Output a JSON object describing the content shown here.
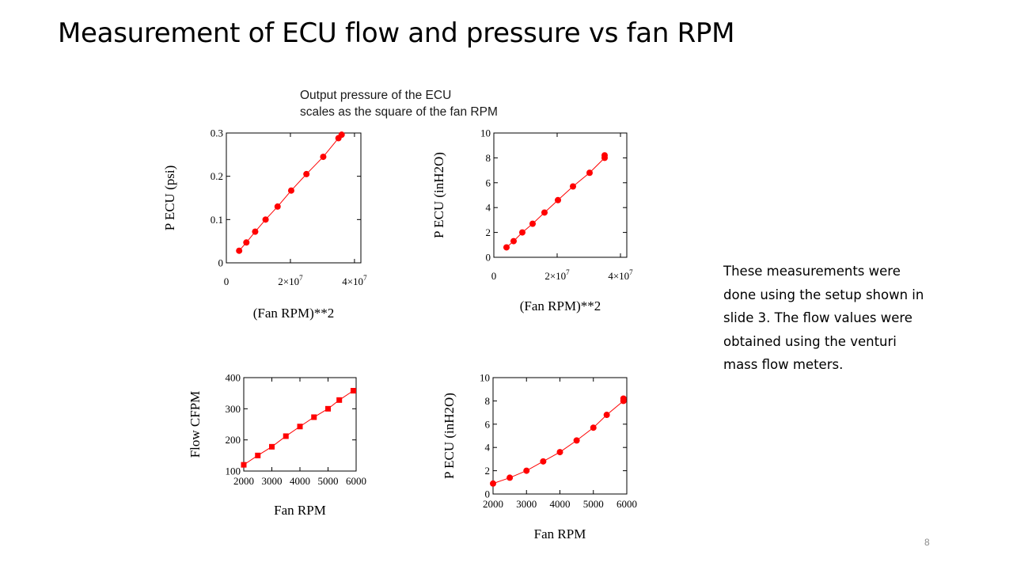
{
  "slide": {
    "title": "Measurement of ECU flow and pressure vs fan RPM",
    "annotation": [
      "Output pressure of the ECU",
      "scales as the square of the fan RPM"
    ],
    "note": [
      "These measurements were",
      "done using the setup shown in",
      "slide 3.  The flow values were",
      "obtained using the venturi",
      "mass flow meters."
    ],
    "page_number": "8"
  },
  "colors": {
    "series": "#ff0000",
    "axis": "#000000",
    "grid": "#000000"
  },
  "chart_data": [
    {
      "type": "line",
      "xlabel": "(Fan RPM)**2",
      "ylabel": "P ECU (psi)",
      "xlim": [
        0,
        42000000.0
      ],
      "ylim": [
        0,
        0.3
      ],
      "xticks": [
        {
          "v": 0,
          "b": "0",
          "e": ""
        },
        {
          "v": 20000000.0,
          "b": "2×10",
          "e": "7"
        },
        {
          "v": 40000000.0,
          "b": "4×10",
          "e": "7"
        }
      ],
      "yticks": [
        {
          "v": 0,
          "t": "0"
        },
        {
          "v": 0.1,
          "t": "0.1"
        },
        {
          "v": 0.2,
          "t": "0.2"
        },
        {
          "v": 0.3,
          "t": "0.3"
        }
      ],
      "marker": "circle",
      "x": [
        4000000.0,
        6250000.0,
        9000000.0,
        12250000.0,
        16000000.0,
        20250000.0,
        25000000.0,
        30250000.0,
        35000000.0,
        36000000.0
      ],
      "y": [
        0.028,
        0.047,
        0.072,
        0.1,
        0.13,
        0.167,
        0.205,
        0.245,
        0.288,
        0.296
      ]
    },
    {
      "type": "line",
      "xlabel": "(Fan RPM)**2",
      "ylabel": "P ECU (inH2O)",
      "xlim": [
        0,
        42000000.0
      ],
      "ylim": [
        0,
        10
      ],
      "xticks": [
        {
          "v": 0,
          "b": "0",
          "e": ""
        },
        {
          "v": 20000000.0,
          "b": "2×10",
          "e": "7"
        },
        {
          "v": 40000000.0,
          "b": "4×10",
          "e": "7"
        }
      ],
      "yticks": [
        {
          "v": 0,
          "t": "0"
        },
        {
          "v": 2,
          "t": "2"
        },
        {
          "v": 4,
          "t": "4"
        },
        {
          "v": 6,
          "t": "6"
        },
        {
          "v": 8,
          "t": "8"
        },
        {
          "v": 10,
          "t": "10"
        }
      ],
      "marker": "circle",
      "x": [
        4000000.0,
        6250000.0,
        9000000.0,
        12250000.0,
        16000000.0,
        20250000.0,
        25000000.0,
        30250000.0,
        35000000.0,
        35000000.0
      ],
      "y": [
        0.8,
        1.3,
        2.0,
        2.7,
        3.6,
        4.6,
        5.7,
        6.8,
        8.0,
        8.2
      ]
    },
    {
      "type": "line",
      "xlabel": "Fan RPM",
      "ylabel": "Flow CFPM",
      "xlim": [
        2000,
        6000
      ],
      "ylim": [
        100,
        400
      ],
      "xticks": [
        {
          "v": 2000,
          "b": "2000",
          "e": ""
        },
        {
          "v": 3000,
          "b": "3000",
          "e": ""
        },
        {
          "v": 4000,
          "b": "4000",
          "e": ""
        },
        {
          "v": 5000,
          "b": "5000",
          "e": ""
        },
        {
          "v": 6000,
          "b": "6000",
          "e": ""
        }
      ],
      "yticks": [
        {
          "v": 100,
          "t": "100"
        },
        {
          "v": 200,
          "t": "200"
        },
        {
          "v": 300,
          "t": "300"
        },
        {
          "v": 400,
          "t": "400"
        }
      ],
      "marker": "square",
      "x": [
        2000,
        2500,
        3000,
        3500,
        4000,
        4500,
        5000,
        5400,
        5900
      ],
      "y": [
        120,
        150,
        178,
        212,
        243,
        273,
        300,
        328,
        358
      ]
    },
    {
      "type": "line",
      "xlabel": "Fan RPM",
      "ylabel": "P ECU (inH2O)",
      "xlim": [
        2000,
        6000
      ],
      "ylim": [
        0,
        10
      ],
      "xticks": [
        {
          "v": 2000,
          "b": "2000",
          "e": ""
        },
        {
          "v": 3000,
          "b": "3000",
          "e": ""
        },
        {
          "v": 4000,
          "b": "4000",
          "e": ""
        },
        {
          "v": 5000,
          "b": "5000",
          "e": ""
        },
        {
          "v": 6000,
          "b": "6000",
          "e": ""
        }
      ],
      "yticks": [
        {
          "v": 0,
          "t": "0"
        },
        {
          "v": 2,
          "t": "2"
        },
        {
          "v": 4,
          "t": "4"
        },
        {
          "v": 6,
          "t": "6"
        },
        {
          "v": 8,
          "t": "8"
        },
        {
          "v": 10,
          "t": "10"
        }
      ],
      "marker": "circle",
      "x": [
        2000,
        2500,
        3000,
        3500,
        4000,
        4500,
        5000,
        5400,
        5900,
        5900
      ],
      "y": [
        0.9,
        1.4,
        2.0,
        2.8,
        3.6,
        4.6,
        5.7,
        6.8,
        8.0,
        8.2
      ]
    }
  ]
}
